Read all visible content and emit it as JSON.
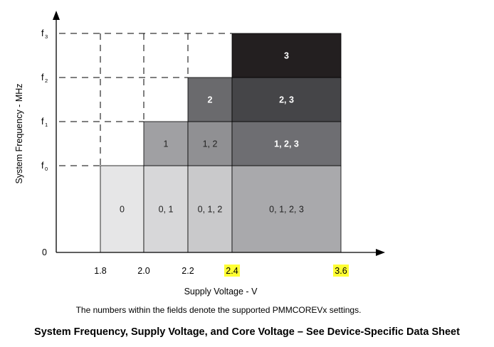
{
  "chart_data": {
    "type": "heatmap",
    "xlabel": "Supply Voltage - V",
    "ylabel": "System Frequency - MHz",
    "x_ticks": [
      {
        "label": "1.8",
        "value": 1.8,
        "highlight": false
      },
      {
        "label": "2.0",
        "value": 2.0,
        "highlight": false
      },
      {
        "label": "2.2",
        "value": 2.2,
        "highlight": false
      },
      {
        "label": "2.4",
        "value": 2.4,
        "highlight": true
      },
      {
        "label": "3.6",
        "value": 3.6,
        "highlight": true
      }
    ],
    "y_ticks": [
      {
        "label": "0",
        "sub": "",
        "level": 0
      },
      {
        "label": "f",
        "sub": "0",
        "level": 1
      },
      {
        "label": "f",
        "sub": "1",
        "level": 2
      },
      {
        "label": "f",
        "sub": "2",
        "level": 3
      },
      {
        "label": "f",
        "sub": "3",
        "level": 4
      }
    ],
    "regions": [
      {
        "x0": 1.8,
        "x1": 2.0,
        "y0": 0,
        "y1": 1,
        "label": "0",
        "color": "#e6e6e7"
      },
      {
        "x0": 2.0,
        "x1": 2.2,
        "y0": 0,
        "y1": 1,
        "label": "0, 1",
        "color": "#d7d7d9"
      },
      {
        "x0": 2.2,
        "x1": 2.4,
        "y0": 0,
        "y1": 1,
        "label": "0, 1, 2",
        "color": "#c9c9cb"
      },
      {
        "x0": 2.4,
        "x1": 3.6,
        "y0": 0,
        "y1": 1,
        "label": "0, 1, 2, 3",
        "color": "#a9a9ac"
      },
      {
        "x0": 2.0,
        "x1": 2.2,
        "y0": 1,
        "y1": 2,
        "label": "1",
        "color": "#a0a0a3"
      },
      {
        "x0": 2.2,
        "x1": 2.4,
        "y0": 1,
        "y1": 2,
        "label": "1, 2",
        "color": "#909093"
      },
      {
        "x0": 2.4,
        "x1": 3.6,
        "y0": 1,
        "y1": 2,
        "label": "1, 2, 3",
        "color": "#6e6e72"
      },
      {
        "x0": 2.2,
        "x1": 2.4,
        "y0": 2,
        "y1": 3,
        "label": "2",
        "color": "#6a6a6d"
      },
      {
        "x0": 2.4,
        "x1": 3.6,
        "y0": 2,
        "y1": 3,
        "label": "2, 3",
        "color": "#454548"
      },
      {
        "x0": 2.4,
        "x1": 3.6,
        "y0": 3,
        "y1": 4,
        "label": "3",
        "color": "#231f20"
      }
    ],
    "highlight_color": "#ffff33"
  },
  "note": "The numbers within the fields denote the supported PMMCOREVx settings.",
  "caption": "System Frequency, Supply Voltage, and Core Voltage – See Device-Specific Data Sheet"
}
